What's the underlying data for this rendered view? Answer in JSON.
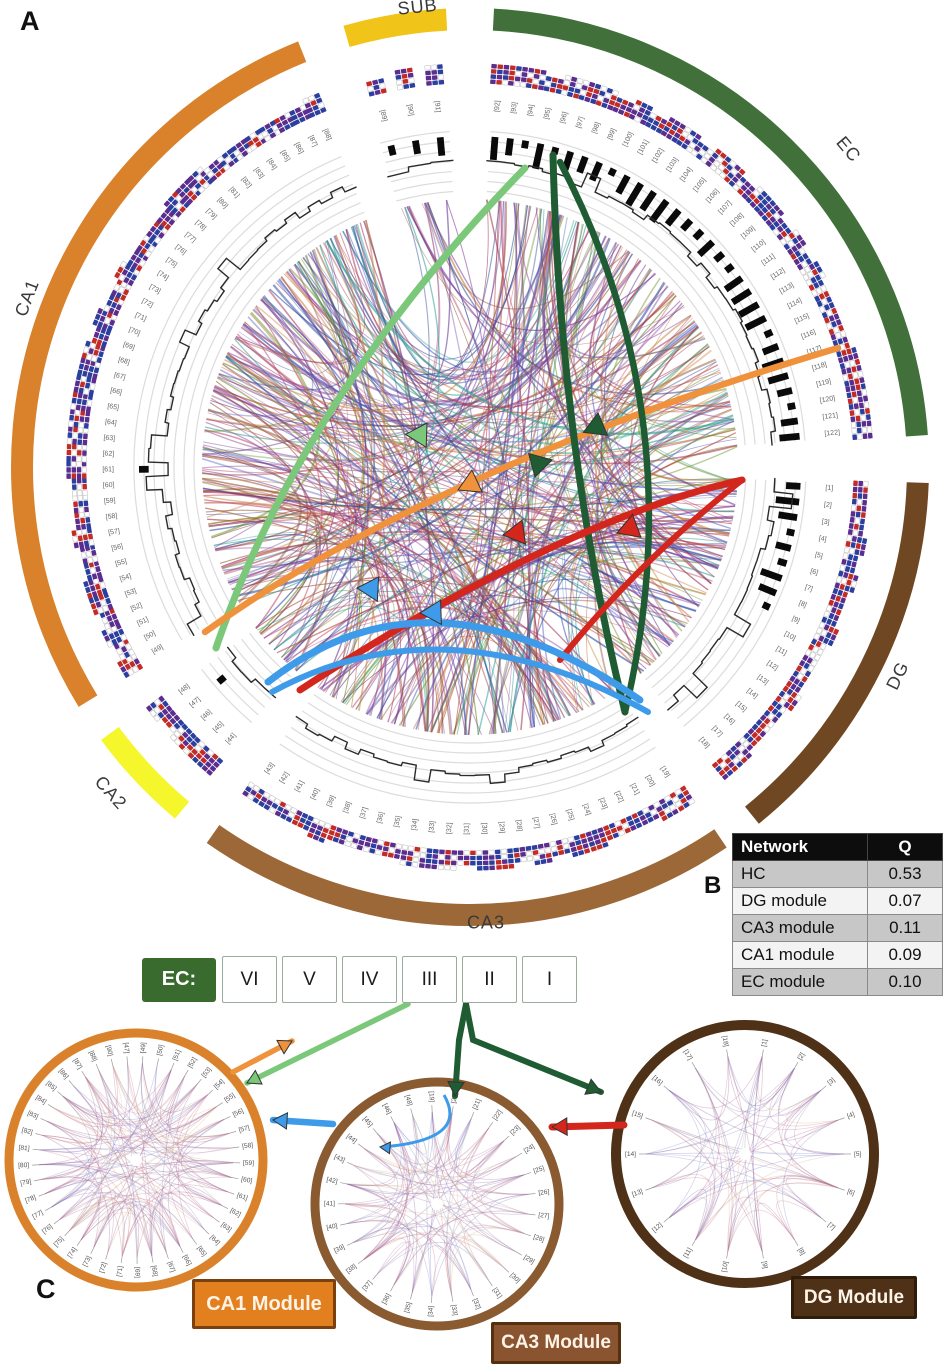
{
  "figure": {
    "panel_a_label": "A",
    "panel_b_label": "B",
    "panel_c_label": "C"
  },
  "main_circos": {
    "segments": [
      {
        "name": "SUB",
        "color": "#F0C419",
        "node_start": 89,
        "node_end": 91
      },
      {
        "name": "EC",
        "color": "#41703B",
        "node_start": 92,
        "node_end": 122
      },
      {
        "name": "DG",
        "color": "#6F4823",
        "node_start": 1,
        "node_end": 18
      },
      {
        "name": "CA3",
        "color": "#9D6838",
        "node_start": 19,
        "node_end": 43
      },
      {
        "name": "CA2",
        "color": "#F6F62C",
        "node_start": 44,
        "node_end": 48
      },
      {
        "name": "CA1",
        "color": "#D9822B",
        "node_start": 49,
        "node_end": 88
      }
    ],
    "node_label_format": "[n]",
    "glyph_colors": [
      "#C32C26",
      "#2B3F9E",
      "#5B2D8E",
      "#FFFFFF"
    ],
    "highlight_arrows": [
      {
        "name": "light-green-projection",
        "color": "#7CC87B"
      },
      {
        "name": "orange-projection",
        "color": "#F0923B"
      },
      {
        "name": "dark-green-projection",
        "color": "#1F5C33"
      },
      {
        "name": "red-projection",
        "color": "#D3261C"
      },
      {
        "name": "blue-projection",
        "color": "#3E9BE9"
      }
    ]
  },
  "modularity_table": {
    "headers": [
      "Network",
      "Q"
    ],
    "rows": [
      [
        "HC",
        "0.53"
      ],
      [
        "DG module",
        "0.07"
      ],
      [
        "CA3 module",
        "0.11"
      ],
      [
        "CA1 module",
        "0.09"
      ],
      [
        "EC module",
        "0.10"
      ]
    ]
  },
  "ec_legend": {
    "title": "EC:",
    "title_bg": "#3A6B2E",
    "layers": [
      "VI",
      "V",
      "IV",
      "III",
      "II",
      "I"
    ]
  },
  "modules": [
    {
      "badge": "CA1 Module",
      "ring_color": "#D9822B",
      "badge_bg": "#E2801F",
      "badge_border": "#7A4010",
      "labels": [
        47,
        49,
        50,
        51,
        52,
        53,
        54,
        55,
        56,
        57,
        58,
        59,
        60,
        61,
        62,
        63,
        64,
        65,
        66,
        67,
        68,
        69,
        71,
        72,
        73,
        74,
        75,
        76,
        77,
        78,
        79,
        80,
        81,
        82,
        83,
        84,
        85,
        86,
        87,
        88,
        90
      ]
    },
    {
      "badge": "CA3 Module",
      "ring_color": "#8A5A30",
      "badge_bg": "#8A5430",
      "badge_border": "#55300F",
      "labels": [
        19,
        20,
        21,
        22,
        23,
        24,
        25,
        26,
        27,
        28,
        29,
        30,
        31,
        32,
        33,
        34,
        35,
        36,
        37,
        38,
        39,
        40,
        41,
        42,
        43,
        44,
        45,
        46,
        48
      ]
    },
    {
      "badge": "DG Module",
      "ring_color": "#4F3118",
      "badge_bg": "#4F3118",
      "badge_border": "#2F1C0A",
      "labels": [
        1,
        2,
        3,
        4,
        5,
        6,
        7,
        8,
        9,
        10,
        11,
        12,
        13,
        14,
        15,
        16,
        17,
        18
      ]
    }
  ]
}
